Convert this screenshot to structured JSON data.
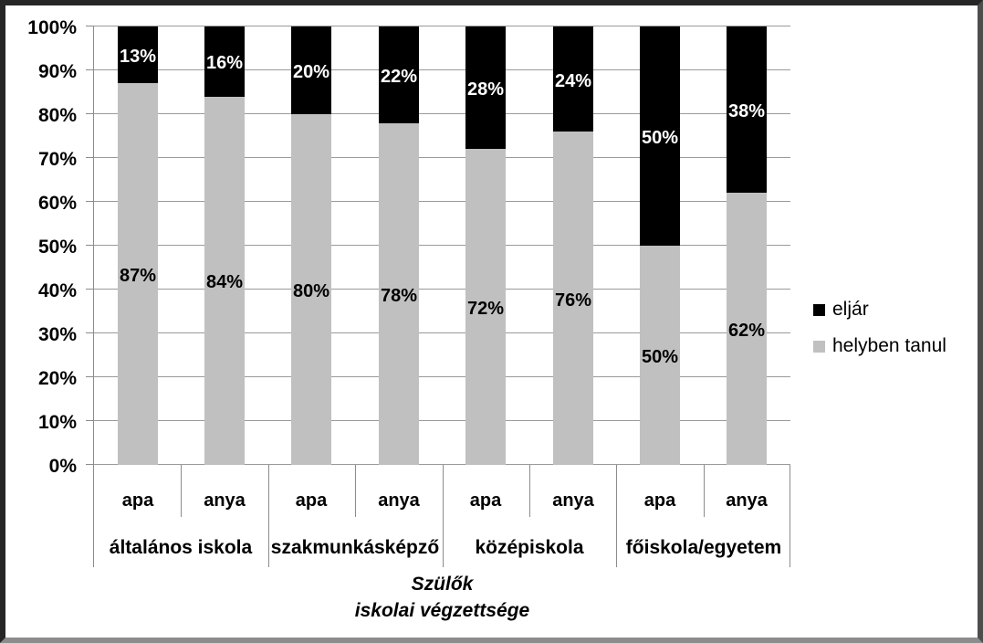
{
  "chart_data": {
    "type": "bar",
    "stacked": true,
    "percent_stacked": true,
    "group_labels": [
      "általános iskola",
      "szakmunkásképző",
      "középiskola",
      "főiskola/egyetem"
    ],
    "bar_labels": [
      "apa",
      "anya",
      "apa",
      "anya",
      "apa",
      "anya",
      "apa",
      "anya"
    ],
    "series": [
      {
        "name": "helyben tanul",
        "color": "#c0c0c0",
        "label_color": "#000000",
        "values": [
          87,
          84,
          80,
          78,
          72,
          76,
          50,
          62
        ]
      },
      {
        "name": "eljár",
        "color": "#000000",
        "label_color": "#ffffff",
        "values": [
          13,
          16,
          20,
          22,
          28,
          24,
          50,
          38
        ]
      }
    ],
    "y_ticks": [
      "100%",
      "90%",
      "80%",
      "70%",
      "60%",
      "50%",
      "40%",
      "30%",
      "20%",
      "10%",
      "0%"
    ],
    "ylim": [
      0,
      100
    ],
    "grid": true,
    "xlabel_line1": "Szülők",
    "xlabel_line2": "iskolai végzettsége",
    "legend_position": "right",
    "legend": [
      {
        "label": "eljár",
        "color": "#000000"
      },
      {
        "label": "helyben tanul",
        "color": "#c0c0c0"
      }
    ],
    "colors": {
      "gridline": "#9a9a9a",
      "axis": "#8c8c8c",
      "background": "#ffffff"
    }
  }
}
